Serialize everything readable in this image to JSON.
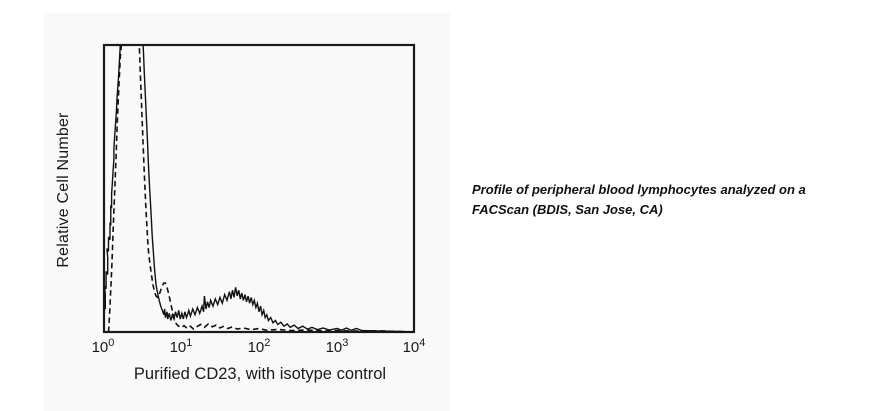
{
  "figure": {
    "caption_line1": "Profile of peripheral blood lymphocytes analyzed on a",
    "caption_line2": "FACScan (BDIS, San Jose, CA)"
  },
  "colors": {
    "curve": "#111111",
    "axis": "#1a1a1a",
    "panel_bg": "#f9f9f9",
    "page_bg": "#ffffff"
  },
  "chart_data": {
    "type": "line",
    "subtype": "flow-cytometry-histogram-overlay",
    "title": "",
    "xlabel": "Purified CD23, with isotype control",
    "ylabel": "Relative Cell Number",
    "x_scale": "log10",
    "x_range_log": [
      0,
      4
    ],
    "ylim": [
      0,
      100
    ],
    "grid": false,
    "legend": "none",
    "x_ticks": [
      {
        "base": "10",
        "exp": "0"
      },
      {
        "base": "10",
        "exp": "1"
      },
      {
        "base": "10",
        "exp": "2"
      },
      {
        "base": "10",
        "exp": "3"
      },
      {
        "base": "10",
        "exp": "4"
      }
    ],
    "series": [
      {
        "id": "cd23-curve",
        "name": "Purified CD23",
        "style": "solid",
        "points_log_x_rel_y": [
          [
            0,
            0
          ],
          [
            0.01,
            3
          ],
          [
            0.01,
            9
          ],
          [
            0.03,
            8
          ],
          [
            0.03,
            13
          ],
          [
            0.02,
            16
          ],
          [
            0.04,
            15
          ],
          [
            0.04,
            21
          ],
          [
            0.06,
            20
          ],
          [
            0.06,
            26
          ],
          [
            0.05,
            29
          ],
          [
            0.07,
            28
          ],
          [
            0.07,
            33
          ],
          [
            0.09,
            32
          ],
          [
            0.09,
            38
          ],
          [
            0.1,
            37
          ],
          [
            0.1,
            44
          ],
          [
            0.11,
            43
          ],
          [
            0.11,
            48
          ],
          [
            0.12,
            52
          ],
          [
            0.13,
            56
          ],
          [
            0.14,
            60
          ],
          [
            0.14,
            64
          ],
          [
            0.15,
            68
          ],
          [
            0.16,
            72
          ],
          [
            0.17,
            76
          ],
          [
            0.18,
            81
          ],
          [
            0.19,
            85
          ],
          [
            0.2,
            89
          ],
          [
            0.21,
            94
          ],
          [
            0.22,
            99
          ],
          [
            0.23,
            104
          ],
          [
            0.25,
            108
          ],
          [
            0.3,
            109
          ],
          [
            0.36,
            109
          ],
          [
            0.42,
            109
          ],
          [
            0.48,
            109
          ],
          [
            0.5,
            106
          ],
          [
            0.51,
            102
          ],
          [
            0.52,
            96
          ],
          [
            0.53,
            90
          ],
          [
            0.54,
            84
          ],
          [
            0.55,
            78
          ],
          [
            0.56,
            72
          ],
          [
            0.57,
            66
          ],
          [
            0.58,
            60
          ],
          [
            0.59,
            54
          ],
          [
            0.6,
            49
          ],
          [
            0.61,
            44
          ],
          [
            0.62,
            39
          ],
          [
            0.63,
            34
          ],
          [
            0.64,
            30
          ],
          [
            0.65,
            26
          ],
          [
            0.66,
            22
          ],
          [
            0.67,
            19
          ],
          [
            0.68,
            16.5
          ],
          [
            0.7,
            13.5
          ],
          [
            0.72,
            11
          ],
          [
            0.74,
            9
          ],
          [
            0.76,
            7.5
          ],
          [
            0.78,
            6
          ],
          [
            0.79,
            8
          ],
          [
            0.8,
            5
          ],
          [
            0.82,
            7
          ],
          [
            0.83,
            4.5
          ],
          [
            0.85,
            6.5
          ],
          [
            0.87,
            4
          ],
          [
            0.89,
            6
          ],
          [
            0.91,
            4.5
          ],
          [
            0.93,
            7
          ],
          [
            0.95,
            5
          ],
          [
            0.97,
            7.5
          ],
          [
            0.99,
            4.5
          ],
          [
            1.01,
            6.5
          ],
          [
            1.03,
            4.5
          ],
          [
            1.05,
            7
          ],
          [
            1.07,
            5
          ],
          [
            1.1,
            7.5
          ],
          [
            1.12,
            5.5
          ],
          [
            1.15,
            8
          ],
          [
            1.18,
            6
          ],
          [
            1.21,
            8.5
          ],
          [
            1.24,
            6.5
          ],
          [
            1.27,
            9
          ],
          [
            1.29,
            7
          ],
          [
            1.3,
            12.5
          ],
          [
            1.32,
            8
          ],
          [
            1.34,
            10.5
          ],
          [
            1.36,
            8.5
          ],
          [
            1.38,
            11
          ],
          [
            1.41,
            9
          ],
          [
            1.44,
            11.5
          ],
          [
            1.47,
            9.5
          ],
          [
            1.5,
            12
          ],
          [
            1.53,
            10
          ],
          [
            1.56,
            13
          ],
          [
            1.59,
            11
          ],
          [
            1.62,
            14
          ],
          [
            1.64,
            11.5
          ],
          [
            1.66,
            14.5
          ],
          [
            1.68,
            12
          ],
          [
            1.7,
            15.5
          ],
          [
            1.72,
            12.5
          ],
          [
            1.74,
            14.5
          ],
          [
            1.76,
            11.5
          ],
          [
            1.78,
            13.5
          ],
          [
            1.8,
            11
          ],
          [
            1.82,
            13
          ],
          [
            1.84,
            10.5
          ],
          [
            1.86,
            12.5
          ],
          [
            1.88,
            10
          ],
          [
            1.9,
            12
          ],
          [
            1.92,
            9.5
          ],
          [
            1.94,
            11
          ],
          [
            1.96,
            8.5
          ],
          [
            1.98,
            10
          ],
          [
            2,
            7
          ],
          [
            2.02,
            9
          ],
          [
            2.04,
            6
          ],
          [
            2.06,
            7.5
          ],
          [
            2.08,
            5
          ],
          [
            2.1,
            6
          ],
          [
            2.12,
            4
          ],
          [
            2.15,
            5
          ],
          [
            2.18,
            3.2
          ],
          [
            2.21,
            4
          ],
          [
            2.24,
            2.6
          ],
          [
            2.28,
            3.4
          ],
          [
            2.32,
            2
          ],
          [
            2.36,
            2.8
          ],
          [
            2.4,
            1.6
          ],
          [
            2.45,
            2.4
          ],
          [
            2.5,
            1.2
          ],
          [
            2.56,
            2
          ],
          [
            2.62,
            1
          ],
          [
            2.68,
            1.6
          ],
          [
            2.75,
            0.8
          ],
          [
            2.82,
            1.4
          ],
          [
            2.9,
            0.7
          ],
          [
            3,
            1.2
          ],
          [
            3.06,
            0.6
          ],
          [
            3.12,
            1.4
          ],
          [
            3.18,
            0.6
          ],
          [
            3.25,
            1.2
          ],
          [
            3.32,
            0.5
          ],
          [
            3.45,
            0.4
          ],
          [
            3.6,
            0.3
          ],
          [
            3.8,
            0.2
          ],
          [
            4,
            0
          ]
        ]
      },
      {
        "id": "isotype-control-curve",
        "name": "Isotype control",
        "style": "dashed",
        "points_log_x_rel_y": [
          [
            0.07,
            0
          ],
          [
            0.08,
            4
          ],
          [
            0.09,
            9
          ],
          [
            0.1,
            15
          ],
          [
            0.11,
            21
          ],
          [
            0.12,
            28
          ],
          [
            0.13,
            35
          ],
          [
            0.14,
            42
          ],
          [
            0.15,
            49
          ],
          [
            0.16,
            56
          ],
          [
            0.17,
            63
          ],
          [
            0.18,
            70
          ],
          [
            0.19,
            77
          ],
          [
            0.2,
            83
          ],
          [
            0.21,
            89
          ],
          [
            0.22,
            95
          ],
          [
            0.24,
            101
          ],
          [
            0.26,
            106
          ],
          [
            0.29,
            109
          ],
          [
            0.35,
            109
          ],
          [
            0.41,
            109
          ],
          [
            0.45,
            107
          ],
          [
            0.46,
            102
          ],
          [
            0.47,
            96
          ],
          [
            0.48,
            89
          ],
          [
            0.49,
            82
          ],
          [
            0.5,
            75
          ],
          [
            0.51,
            68
          ],
          [
            0.52,
            61
          ],
          [
            0.53,
            55
          ],
          [
            0.54,
            49
          ],
          [
            0.55,
            43
          ],
          [
            0.56,
            38
          ],
          [
            0.57,
            33
          ],
          [
            0.58,
            29
          ],
          [
            0.6,
            24
          ],
          [
            0.62,
            20
          ],
          [
            0.64,
            16.5
          ],
          [
            0.66,
            14
          ],
          [
            0.68,
            12.5
          ],
          [
            0.7,
            12
          ],
          [
            0.72,
            13
          ],
          [
            0.74,
            14.5
          ],
          [
            0.76,
            16
          ],
          [
            0.78,
            17
          ],
          [
            0.8,
            17
          ],
          [
            0.82,
            15.5
          ],
          [
            0.84,
            13.5
          ],
          [
            0.86,
            11
          ],
          [
            0.88,
            8.5
          ],
          [
            0.9,
            6
          ],
          [
            0.92,
            4
          ],
          [
            0.94,
            2.8
          ],
          [
            0.97,
            2
          ],
          [
            1,
            1.5
          ],
          [
            1.04,
            2.2
          ],
          [
            1.08,
            1.2
          ],
          [
            1.12,
            2
          ],
          [
            1.16,
            1
          ],
          [
            1.2,
            1.8
          ],
          [
            1.25,
            2.6
          ],
          [
            1.3,
            1.6
          ],
          [
            1.35,
            2.8
          ],
          [
            1.4,
            1.8
          ],
          [
            1.45,
            2.4
          ],
          [
            1.5,
            1.4
          ],
          [
            1.55,
            2
          ],
          [
            1.6,
            1.2
          ],
          [
            1.66,
            1.8
          ],
          [
            1.72,
            1
          ],
          [
            1.8,
            1.4
          ],
          [
            1.9,
            0.8
          ],
          [
            2,
            1.2
          ],
          [
            2.1,
            0.6
          ],
          [
            2.25,
            0.9
          ],
          [
            2.4,
            0.5
          ],
          [
            2.6,
            0.7
          ],
          [
            2.8,
            0.4
          ],
          [
            3,
            0.5
          ],
          [
            3.25,
            0.3
          ],
          [
            3.5,
            0.4
          ],
          [
            3.75,
            0.2
          ],
          [
            4,
            0
          ]
        ]
      }
    ]
  }
}
